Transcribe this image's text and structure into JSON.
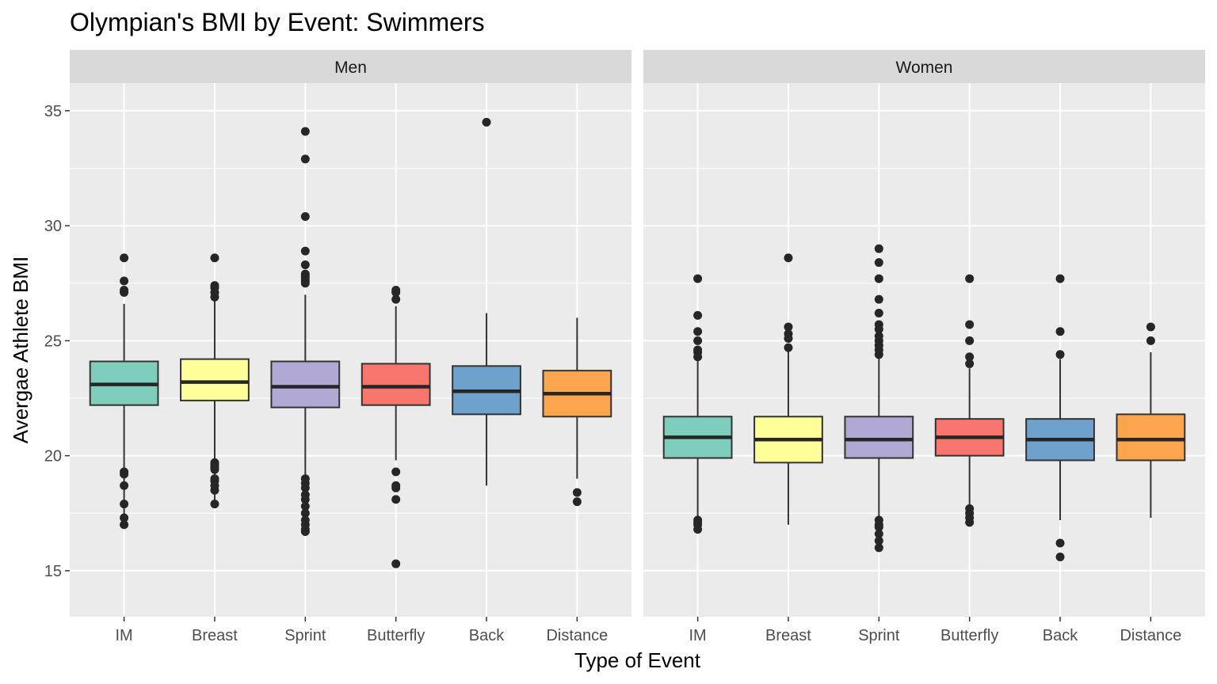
{
  "chart_data": {
    "type": "boxplot",
    "title": "Olympian's BMI by Event: Swimmers",
    "xlabel": "Type of Event",
    "ylabel": "Avergae Athlete BMI",
    "ylim": [
      13,
      36.2
    ],
    "yticks": [
      15,
      20,
      25,
      30,
      35
    ],
    "grid": true,
    "categories": [
      "IM",
      "Breast",
      "Sprint",
      "Butterfly",
      "Back",
      "Distance"
    ],
    "colors": [
      "#7fcdbb",
      "#ffff99",
      "#b1a9d4",
      "#f8766d",
      "#6ea1cc",
      "#fda54d"
    ],
    "facets": [
      {
        "label": "Men",
        "boxes": [
          {
            "category": "IM",
            "min": 17.0,
            "q1": 22.2,
            "median": 23.1,
            "q3": 24.1,
            "max": 26.6,
            "outliers": [
              28.6,
              27.6,
              27.2,
              27.1,
              19.3,
              19.2,
              18.7,
              17.9,
              17.3,
              17.0
            ]
          },
          {
            "category": "Breast",
            "min": 17.9,
            "q1": 22.4,
            "median": 23.2,
            "q3": 24.2,
            "max": 27.0,
            "outliers": [
              28.6,
              27.4,
              27.3,
              27.1,
              26.9,
              19.7,
              19.6,
              19.5,
              19.4,
              19.0,
              18.9,
              18.7,
              18.5,
              17.9
            ]
          },
          {
            "category": "Sprint",
            "min": 16.7,
            "q1": 22.1,
            "median": 23.0,
            "q3": 24.1,
            "max": 27.0,
            "outliers": [
              34.1,
              32.9,
              30.4,
              28.9,
              28.3,
              27.9,
              27.8,
              27.7,
              27.6,
              27.5,
              19.0,
              18.8,
              18.6,
              18.3,
              18.1,
              17.8,
              17.5,
              17.2,
              17.0,
              16.8,
              16.7
            ]
          },
          {
            "category": "Butterfly",
            "min": 19.8,
            "q1": 22.2,
            "median": 23.0,
            "q3": 24.0,
            "max": 26.5,
            "outliers": [
              27.2,
              27.1,
              26.8,
              19.3,
              18.7,
              18.6,
              18.1,
              15.3
            ]
          },
          {
            "category": "Back",
            "min": 18.7,
            "q1": 21.8,
            "median": 22.8,
            "q3": 23.9,
            "max": 26.2,
            "outliers": [
              34.5
            ]
          },
          {
            "category": "Distance",
            "min": 19.0,
            "q1": 21.7,
            "median": 22.7,
            "q3": 23.7,
            "max": 26.0,
            "outliers": [
              18.4,
              18.0
            ]
          }
        ]
      },
      {
        "label": "Women",
        "boxes": [
          {
            "category": "IM",
            "min": 17.3,
            "q1": 19.9,
            "median": 20.8,
            "q3": 21.7,
            "max": 24.2,
            "outliers": [
              27.7,
              26.1,
              25.4,
              25.0,
              24.6,
              24.5,
              24.3,
              17.2,
              17.1,
              17.0,
              16.8
            ]
          },
          {
            "category": "Breast",
            "min": 17.0,
            "q1": 19.7,
            "median": 20.7,
            "q3": 21.7,
            "max": 24.7,
            "outliers": [
              28.6,
              25.6,
              25.3,
              25.1,
              24.7
            ]
          },
          {
            "category": "Sprint",
            "min": 17.3,
            "q1": 19.9,
            "median": 20.7,
            "q3": 21.7,
            "max": 24.3,
            "outliers": [
              29.0,
              28.4,
              27.7,
              26.8,
              26.2,
              25.7,
              25.5,
              25.2,
              25.0,
              24.8,
              24.6,
              24.4,
              17.2,
              17.0,
              16.9,
              16.6,
              16.3,
              16.0
            ]
          },
          {
            "category": "Butterfly",
            "min": 17.8,
            "q1": 20.0,
            "median": 20.8,
            "q3": 21.6,
            "max": 23.8,
            "outliers": [
              27.7,
              25.7,
              25.0,
              24.3,
              24.0,
              17.7,
              17.5,
              17.3,
              17.1
            ]
          },
          {
            "category": "Back",
            "min": 17.2,
            "q1": 19.8,
            "median": 20.7,
            "q3": 21.6,
            "max": 24.2,
            "outliers": [
              27.7,
              25.4,
              24.4,
              16.2,
              15.6
            ]
          },
          {
            "category": "Distance",
            "min": 17.3,
            "q1": 19.8,
            "median": 20.7,
            "q3": 21.8,
            "max": 24.5,
            "outliers": [
              25.6,
              25.0
            ]
          }
        ]
      }
    ]
  }
}
